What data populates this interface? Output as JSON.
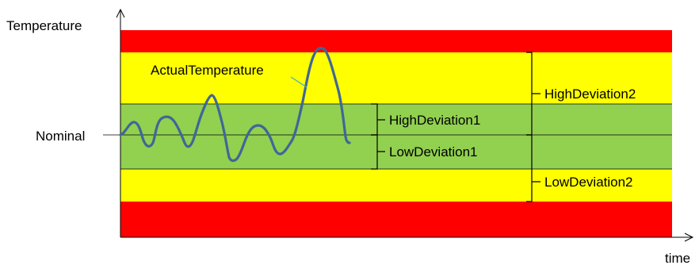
{
  "labels": {
    "y_axis": "Temperature",
    "x_axis": "time",
    "nominal": "Nominal",
    "actual": "ActualTemperature",
    "high1": "HighDeviation1",
    "low1": "LowDeviation1",
    "high2": "HighDeviation2",
    "low2": "LowDeviation2"
  },
  "colors": {
    "red_band": "#ff0000",
    "yellow_band": "#ffff00",
    "green_band": "#92d050",
    "signal": "#3f6797",
    "line": "#000000",
    "leader": "#4bacc6"
  }
}
